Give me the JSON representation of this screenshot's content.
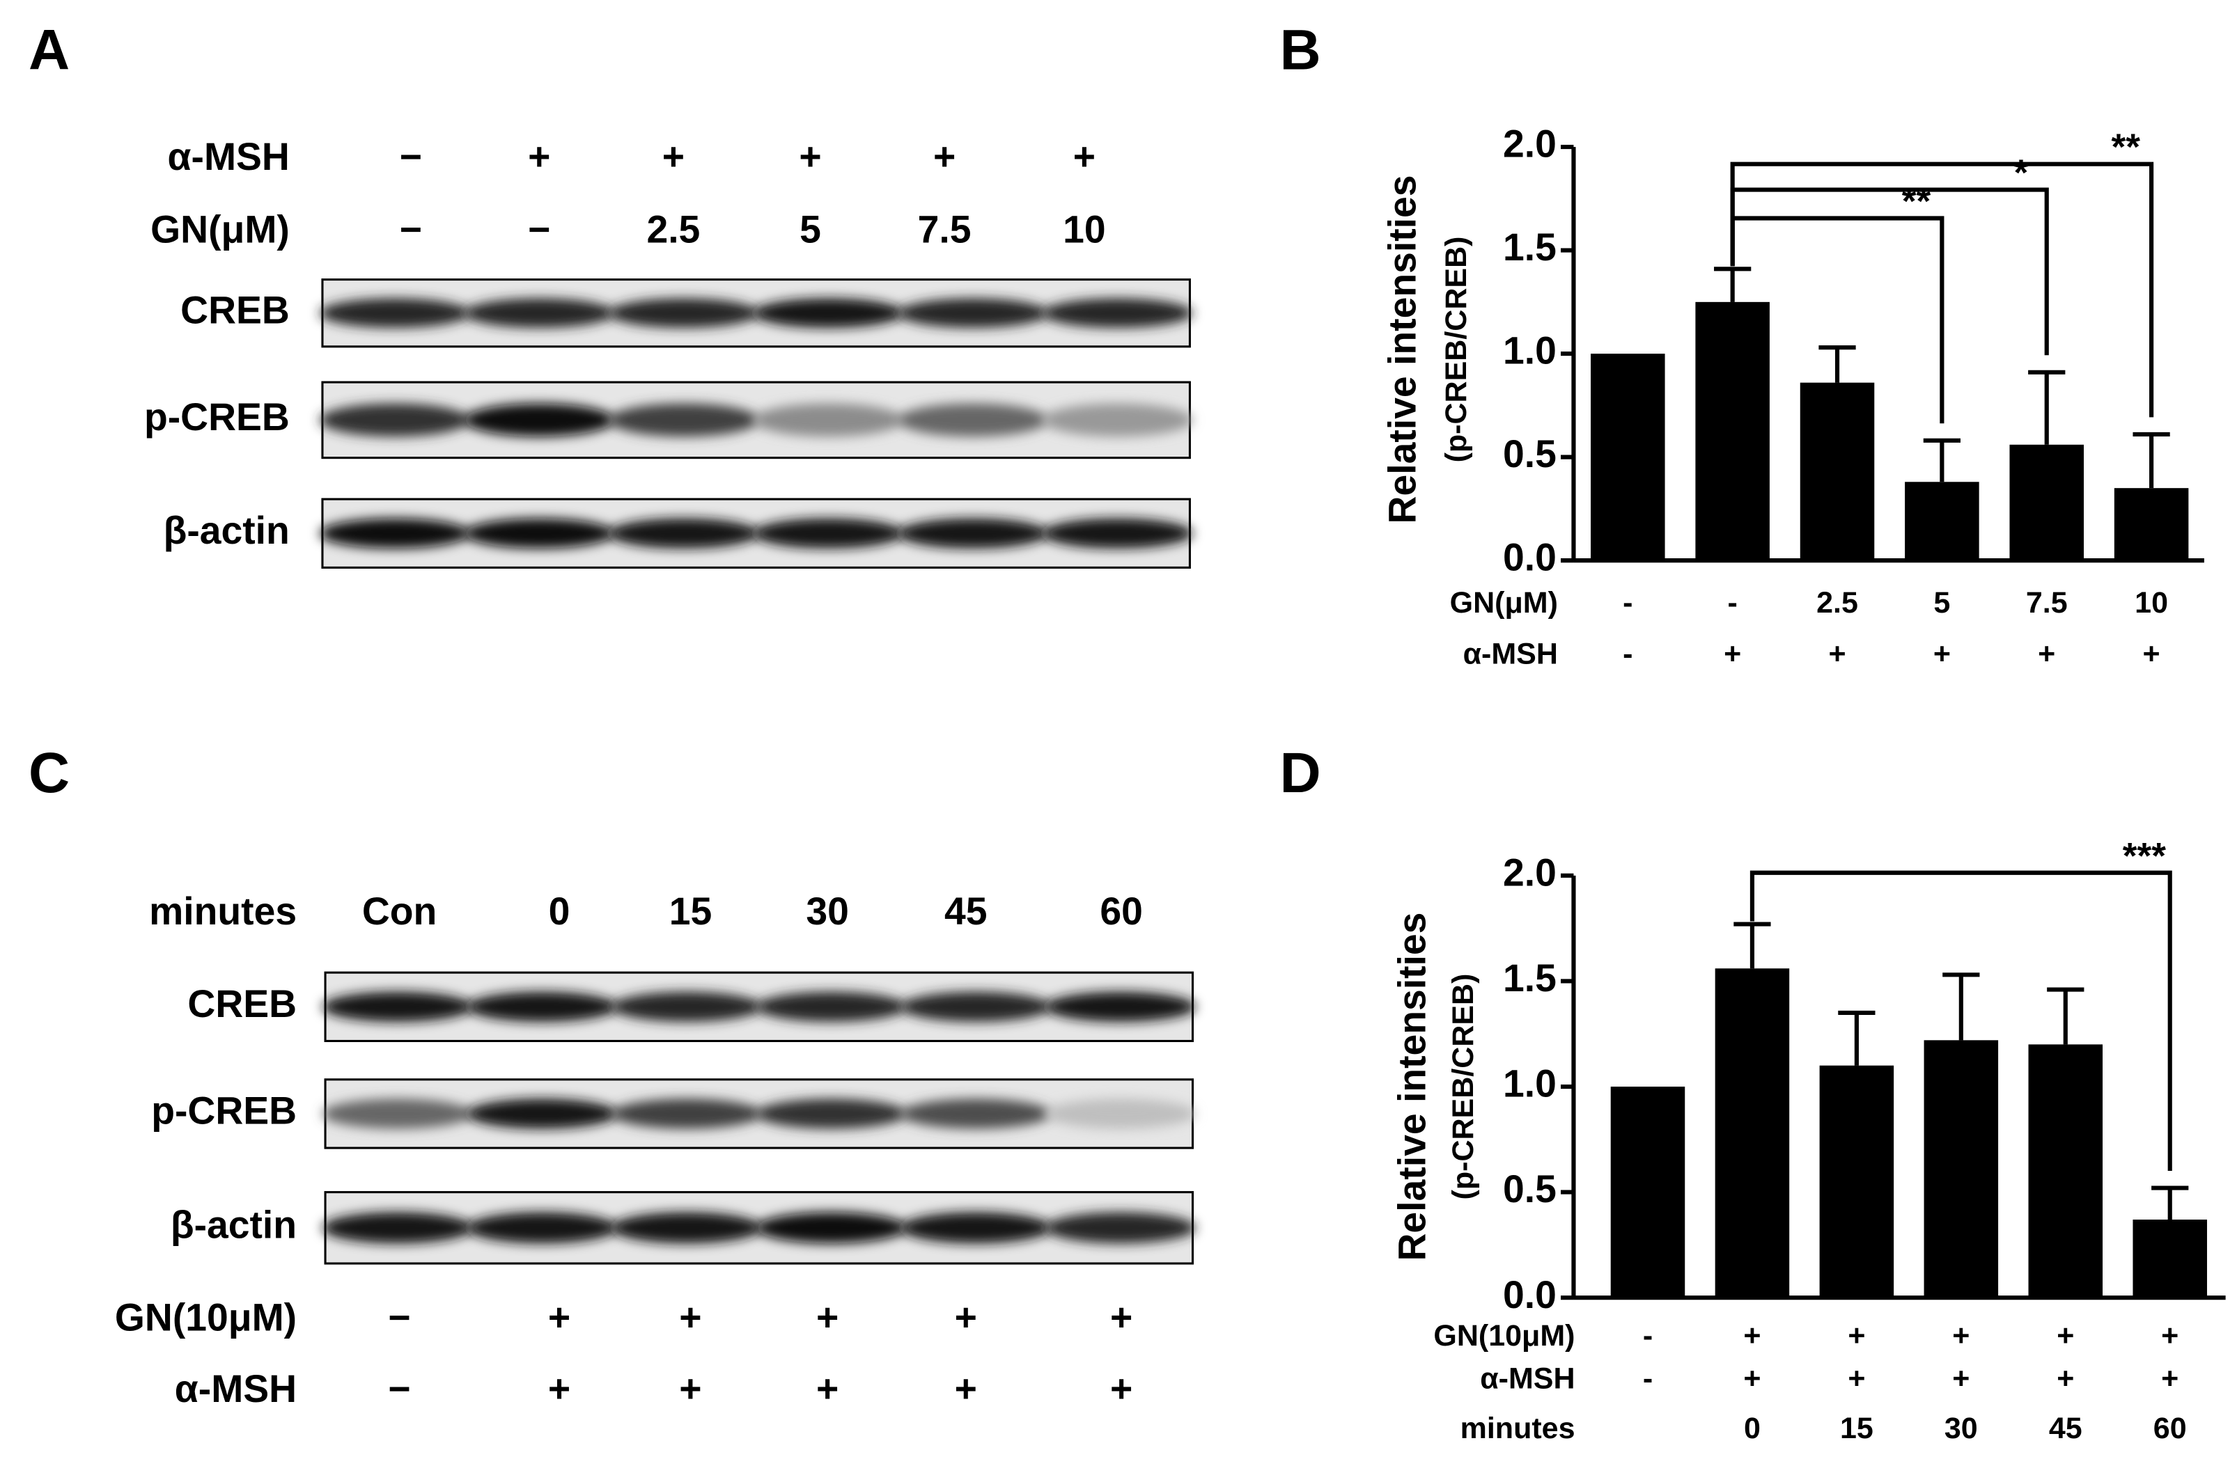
{
  "panel_labels": [
    "A",
    "B",
    "C",
    "D"
  ],
  "blot_a": {
    "top_rows": [
      {
        "label": "α-MSH",
        "values": [
          "−",
          "+",
          "+",
          "+",
          "+",
          "+"
        ]
      },
      {
        "label": "GN(μM)",
        "values": [
          "−",
          "−",
          "2.5",
          "5",
          "7.5",
          "10"
        ]
      }
    ],
    "bands": [
      "CREB",
      "p-CREB",
      "β-actin"
    ]
  },
  "blot_c": {
    "top_rows": [
      {
        "label": "minutes",
        "values": [
          "Con",
          "0",
          "15",
          "30",
          "45",
          "60"
        ]
      }
    ],
    "bands": [
      "CREB",
      "p-CREB",
      "β-actin"
    ],
    "bottom_rows": [
      {
        "label": "GN(10μM)",
        "values": [
          "−",
          "+",
          "+",
          "+",
          "+",
          "+"
        ]
      },
      {
        "label": "α-MSH",
        "values": [
          "−",
          "+",
          "+",
          "+",
          "+",
          "+"
        ]
      }
    ]
  },
  "chart_data": [
    {
      "type": "bar",
      "ylabel": "Relative intensities",
      "ylabel_sub": "(p-CREB/CREB)",
      "values": [
        1.0,
        1.25,
        0.86,
        0.38,
        0.56,
        0.35
      ],
      "errors": [
        null,
        0.16,
        0.17,
        0.2,
        0.35,
        0.26
      ],
      "color": "#000000",
      "category_rows": [
        {
          "label": "GN(μM)",
          "values": [
            "-",
            "-",
            "2.5",
            "5",
            "7.5",
            "10"
          ]
        },
        {
          "label": "α-MSH",
          "values": [
            "-",
            "+",
            "+",
            "+",
            "+",
            "+"
          ]
        }
      ],
      "ylim": [
        0,
        2
      ],
      "yticks": [
        {
          "value": 0,
          "label": "0.0"
        },
        {
          "value": 0.5,
          "label": "0.5"
        },
        {
          "value": 1,
          "label": "1.0"
        },
        {
          "value": 1.5,
          "label": "1.5"
        },
        {
          "value": 2,
          "label": "2.0"
        }
      ],
      "significance": [
        {
          "from": 1,
          "to": 5,
          "label": "**"
        },
        {
          "from": 1,
          "to": 4,
          "label": "*"
        },
        {
          "from": 1,
          "to": 3,
          "label": "**"
        }
      ]
    },
    {
      "type": "bar",
      "ylabel": "Relative intensities",
      "ylabel_sub": "(p-CREB/CREB)",
      "values": [
        1.0,
        1.56,
        1.1,
        1.22,
        1.2,
        0.37
      ],
      "errors": [
        null,
        0.21,
        0.25,
        0.31,
        0.26,
        0.15
      ],
      "color": "#000000",
      "category_rows": [
        {
          "label": "GN(10μM)",
          "values": [
            "-",
            "+",
            "+",
            "+",
            "+",
            "+"
          ]
        },
        {
          "label": "α-MSH",
          "values": [
            "-",
            "+",
            "+",
            "+",
            "+",
            "+"
          ]
        },
        {
          "label": "minutes",
          "values": [
            null,
            "0",
            "15",
            "30",
            "45",
            "60"
          ]
        }
      ],
      "ylim": [
        0,
        2
      ],
      "yticks": [
        {
          "value": 0,
          "label": "0.0"
        },
        {
          "value": 0.5,
          "label": "0.5"
        },
        {
          "value": 1,
          "label": "1.0"
        },
        {
          "value": 1.5,
          "label": "1.5"
        },
        {
          "value": 2,
          "label": "2.0"
        }
      ],
      "significance": [
        {
          "from": 1,
          "to": 5,
          "label": "***"
        }
      ]
    }
  ]
}
